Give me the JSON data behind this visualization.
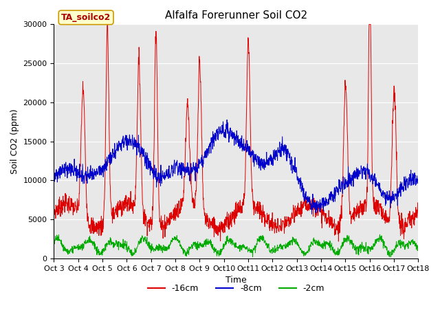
{
  "title": "Alfalfa Forerunner Soil CO2",
  "ylabel": "Soil CO2 (ppm)",
  "xlabel": "Time",
  "ylim": [
    0,
    30000
  ],
  "yticks": [
    0,
    5000,
    10000,
    15000,
    20000,
    25000,
    30000
  ],
  "xtick_labels": [
    "Oct 3",
    "Oct 4",
    "Oct 5",
    "Oct 6",
    "Oct 7",
    "Oct 8",
    "Oct 9",
    "Oct 10",
    "Oct 11",
    "Oct 12",
    "Oct 13",
    "Oct 14",
    "Oct 15",
    "Oct 16",
    "Oct 17",
    "Oct 18"
  ],
  "line_colors": [
    "#dd0000",
    "#0000cc",
    "#00aa00"
  ],
  "line_labels": [
    "-16cm",
    "-8cm",
    "-2cm"
  ],
  "annotation_text": "TA_soilco2",
  "annotation_color": "#aa0000",
  "annotation_bg": "#ffffcc",
  "annotation_border": "#cc9900",
  "plot_bg": "#e8e8e8",
  "fig_bg": "#ffffff",
  "title_fontsize": 11,
  "axis_fontsize": 9,
  "tick_fontsize": 8
}
